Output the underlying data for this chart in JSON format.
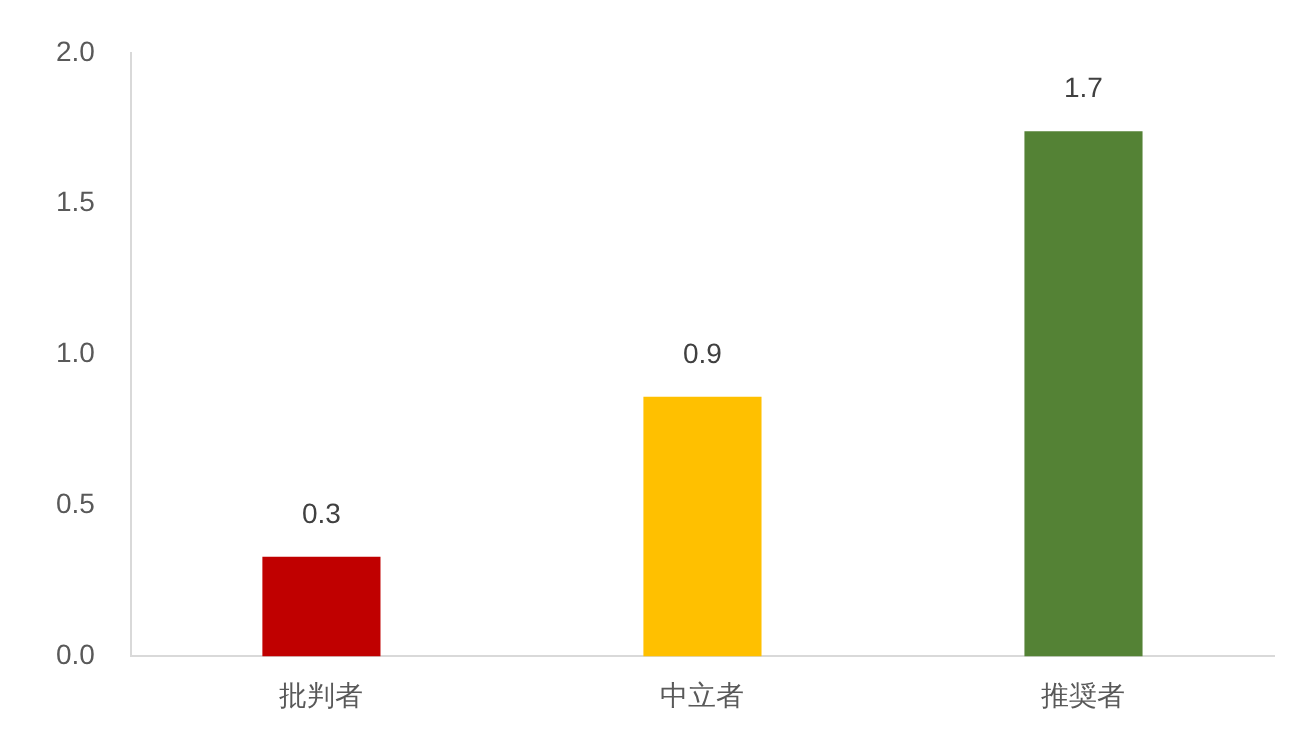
{
  "chart_data": {
    "type": "bar",
    "categories": [
      "批判者",
      "中立者",
      "推奨者"
    ],
    "values": [
      0.33,
      0.86,
      1.74
    ],
    "colors": [
      "#c00000",
      "#ffc000",
      "#548235"
    ],
    "value_labels": [
      "0.3",
      "0.9",
      "1.7"
    ],
    "ylim": [
      0,
      2
    ],
    "yticks": [
      {
        "value": 0,
        "label": "0.0"
      },
      {
        "value": 0.5,
        "label": "0.5"
      },
      {
        "value": 1,
        "label": "1.0"
      },
      {
        "value": 1.5,
        "label": "1.5"
      },
      {
        "value": 2,
        "label": "2.0"
      }
    ],
    "grid": false,
    "legend": false
  }
}
